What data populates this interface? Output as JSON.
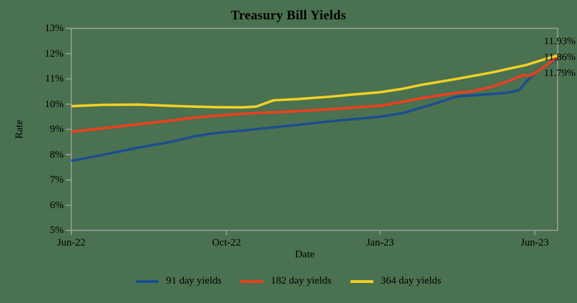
{
  "colors": {
    "background": "#4a7150",
    "axis": "#a9a9a9",
    "text": "#000000"
  },
  "chart_data": {
    "type": "line",
    "title": "Treasury Bill Yields",
    "xlabel": "Date",
    "ylabel": "Rate",
    "ylim": [
      5,
      13
    ],
    "grid": false,
    "legend_position": "bottom-center",
    "y_ticks": [
      {
        "label": "13%",
        "value": 13
      },
      {
        "label": "12%",
        "value": 12
      },
      {
        "label": "11%",
        "value": 11
      },
      {
        "label": "10%",
        "value": 10
      },
      {
        "label": "9%",
        "value": 9
      },
      {
        "label": "8%",
        "value": 8
      },
      {
        "label": "7%",
        "value": 7
      },
      {
        "label": "6%",
        "value": 6
      },
      {
        "label": "5%",
        "value": 5
      }
    ],
    "x_ticks": [
      {
        "label": "Jun-22",
        "pos": 0.0
      },
      {
        "label": "Oct-22",
        "pos": 0.319
      },
      {
        "label": "Jan-23",
        "pos": 0.635
      },
      {
        "label": "Jun-23",
        "pos": 0.953
      }
    ],
    "series": [
      {
        "name": "91 day yields",
        "color": "#1b4e8e",
        "end_label": "11.79%",
        "end_value": 11.79,
        "points": [
          [
            0.0,
            7.75
          ],
          [
            0.067,
            8.0
          ],
          [
            0.138,
            8.28
          ],
          [
            0.209,
            8.52
          ],
          [
            0.252,
            8.72
          ],
          [
            0.295,
            8.85
          ],
          [
            0.323,
            8.9
          ],
          [
            0.352,
            8.95
          ],
          [
            0.395,
            9.04
          ],
          [
            0.466,
            9.18
          ],
          [
            0.537,
            9.33
          ],
          [
            0.608,
            9.45
          ],
          [
            0.635,
            9.5
          ],
          [
            0.679,
            9.63
          ],
          [
            0.736,
            9.95
          ],
          [
            0.793,
            10.3
          ],
          [
            0.85,
            10.38
          ],
          [
            0.893,
            10.44
          ],
          [
            0.921,
            10.55
          ],
          [
            0.936,
            10.9
          ],
          [
            0.957,
            11.3
          ],
          [
            0.978,
            11.55
          ],
          [
            1.0,
            11.79
          ]
        ]
      },
      {
        "name": "182 day yields",
        "color": "#f03e1d",
        "end_label": "11.86%",
        "end_value": 11.86,
        "points": [
          [
            0.0,
            8.9
          ],
          [
            0.067,
            9.05
          ],
          [
            0.138,
            9.2
          ],
          [
            0.209,
            9.36
          ],
          [
            0.252,
            9.46
          ],
          [
            0.295,
            9.54
          ],
          [
            0.323,
            9.58
          ],
          [
            0.38,
            9.65
          ],
          [
            0.423,
            9.68
          ],
          [
            0.466,
            9.72
          ],
          [
            0.537,
            9.8
          ],
          [
            0.608,
            9.9
          ],
          [
            0.635,
            9.94
          ],
          [
            0.665,
            10.03
          ],
          [
            0.722,
            10.24
          ],
          [
            0.793,
            10.45
          ],
          [
            0.822,
            10.5
          ],
          [
            0.864,
            10.68
          ],
          [
            0.907,
            10.97
          ],
          [
            0.929,
            11.15
          ],
          [
            0.943,
            11.12
          ],
          [
            0.957,
            11.28
          ],
          [
            0.978,
            11.55
          ],
          [
            1.0,
            11.86
          ]
        ]
      },
      {
        "name": "364 day yields",
        "color": "#f2d026",
        "end_label": "11.93%",
        "end_value": 11.93,
        "points": [
          [
            0.0,
            9.92
          ],
          [
            0.067,
            9.97
          ],
          [
            0.138,
            9.98
          ],
          [
            0.209,
            9.93
          ],
          [
            0.252,
            9.9
          ],
          [
            0.295,
            9.88
          ],
          [
            0.352,
            9.87
          ],
          [
            0.38,
            9.9
          ],
          [
            0.416,
            10.15
          ],
          [
            0.466,
            10.2
          ],
          [
            0.537,
            10.3
          ],
          [
            0.58,
            10.38
          ],
          [
            0.635,
            10.47
          ],
          [
            0.679,
            10.6
          ],
          [
            0.722,
            10.77
          ],
          [
            0.793,
            11.0
          ],
          [
            0.864,
            11.25
          ],
          [
            0.907,
            11.43
          ],
          [
            0.936,
            11.55
          ],
          [
            0.964,
            11.72
          ],
          [
            1.0,
            11.93
          ]
        ]
      }
    ]
  }
}
